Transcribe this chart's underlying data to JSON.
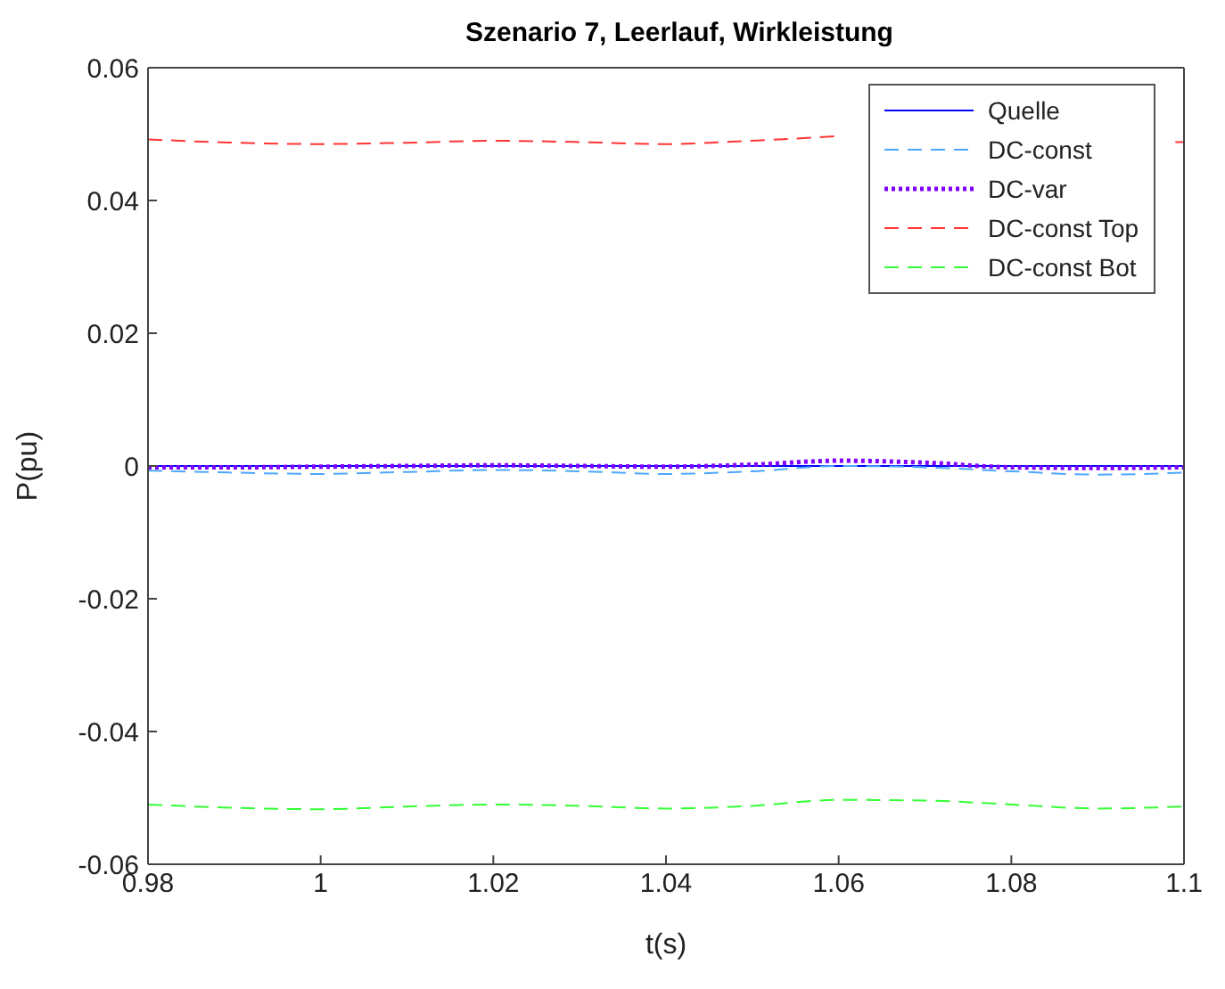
{
  "chart_data": {
    "type": "line",
    "title": "Szenario 7, Leerlauf, Wirkleistung",
    "xlabel": "t(s)",
    "ylabel": "P(pu)",
    "x": [
      0.98,
      0.99,
      1.0,
      1.01,
      1.02,
      1.03,
      1.04,
      1.05,
      1.06,
      1.07,
      1.08,
      1.09,
      1.1
    ],
    "series": [
      {
        "name": "Quelle",
        "color": "#0000ff",
        "line_style": "solid",
        "values": [
          0,
          0,
          0,
          0,
          0,
          0,
          0,
          0,
          0,
          0,
          0,
          0,
          0
        ]
      },
      {
        "name": "DC-const",
        "color": "#4da6ff",
        "line_style": "dashed",
        "values": [
          -0.0007,
          -0.001,
          -0.0012,
          -0.0009,
          -0.0006,
          -0.0008,
          -0.0012,
          -0.0008,
          0,
          -0.0002,
          -0.0008,
          -0.0013,
          -0.001
        ]
      },
      {
        "name": "DC-var",
        "color": "#8000ff",
        "line_style": "dotted",
        "values": [
          -0.0002,
          -0.0002,
          -0.0001,
          0,
          0.0001,
          0,
          -0.0001,
          0.0002,
          0.0008,
          0.0005,
          -0.0002,
          -0.0003,
          -0.0002
        ]
      },
      {
        "name": "DC-const Top",
        "color": "#ff3333",
        "line_style": "dashed",
        "x": [
          0.98,
          0.99,
          1.0,
          1.01,
          1.02,
          1.03,
          1.04,
          1.05,
          1.06,
          1.07,
          1.08,
          1.09,
          1.099,
          1.1
        ],
        "values": [
          0.0492,
          0.0487,
          0.0485,
          0.0487,
          0.049,
          0.0488,
          0.0485,
          0.049,
          0.0497,
          null,
          null,
          null,
          0.0488,
          0.0488
        ]
      },
      {
        "name": "DC-const Bot",
        "color": "#33ff33",
        "line_style": "dashed",
        "values": [
          -0.051,
          -0.0515,
          -0.0517,
          -0.0513,
          -0.051,
          -0.0512,
          -0.0516,
          -0.0512,
          -0.0503,
          -0.0504,
          -0.051,
          -0.0516,
          -0.0513
        ]
      }
    ],
    "xlim": [
      0.98,
      1.1
    ],
    "xticks": [
      0.98,
      1,
      1.02,
      1.04,
      1.06,
      1.08,
      1.1
    ],
    "ylim": [
      -0.06,
      0.06
    ],
    "yticks": [
      -0.06,
      -0.04,
      -0.02,
      0,
      0.02,
      0.04,
      0.06
    ],
    "grid": false,
    "legend": "top right",
    "marker": "none"
  }
}
